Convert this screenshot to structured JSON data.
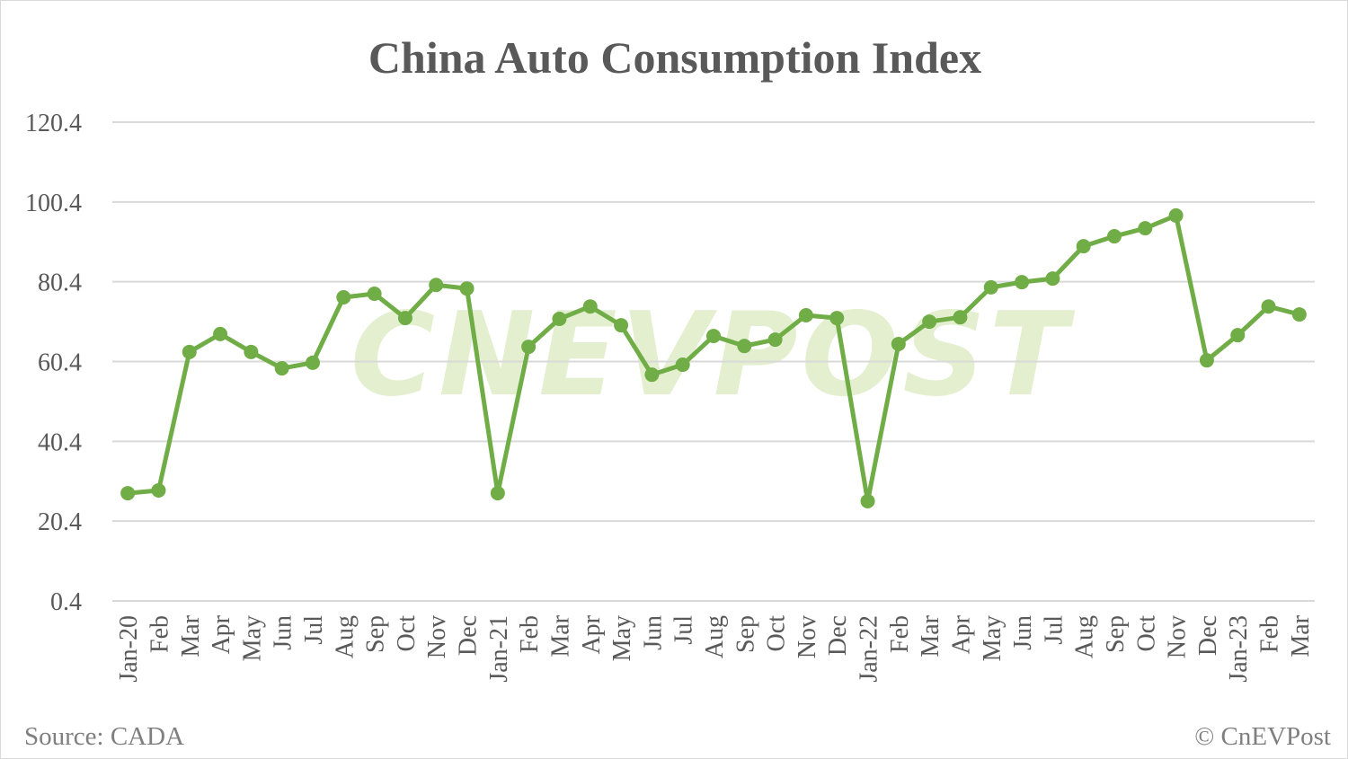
{
  "chart_data": {
    "type": "line",
    "title": "China Auto Consumption Index",
    "xlabel": "",
    "ylabel": "",
    "ylim": [
      0.4,
      120.4
    ],
    "yticks": [
      "0.4",
      "20.4",
      "40.4",
      "60.4",
      "80.4",
      "100.4",
      "120.4"
    ],
    "grid": true,
    "categories": [
      "Jan-20",
      "Feb",
      "Mar",
      "Apr",
      "May",
      "Jun",
      "Jul",
      "Aug",
      "Sep",
      "Oct",
      "Nov",
      "Dec",
      "Jan-21",
      "Feb",
      "Mar",
      "Apr",
      "May",
      "Jun",
      "Jul",
      "Aug",
      "Sep",
      "Oct",
      "Nov",
      "Dec",
      "Jan-22",
      "Feb",
      "Mar",
      "Apr",
      "May",
      "Jun",
      "Jul",
      "Aug",
      "Sep",
      "Oct",
      "Nov",
      "Dec",
      "Jan-23",
      "Feb",
      "Mar"
    ],
    "series": [
      {
        "values": [
          27.4,
          28.1,
          62.8,
          67.3,
          62.8,
          58.7,
          60.1,
          76.5,
          77.4,
          71.3,
          79.6,
          78.7,
          27.4,
          64.1,
          71.1,
          74.2,
          69.5,
          57.1,
          59.6,
          66.8,
          64.3,
          65.9,
          72.0,
          71.3,
          25.4,
          64.8,
          70.4,
          71.5,
          79.0,
          80.3,
          81.2,
          89.3,
          91.8,
          93.8,
          97.0,
          60.7,
          67.0,
          74.2,
          72.2
        ],
        "color": "#70ad47"
      }
    ],
    "source": "Source: CADA",
    "copyright": "© CnEVPost",
    "watermark": "CNEVPOST",
    "watermark_color": "#e3efcf",
    "gridline_color": "#d9d9d9",
    "text_color": "#595959"
  }
}
